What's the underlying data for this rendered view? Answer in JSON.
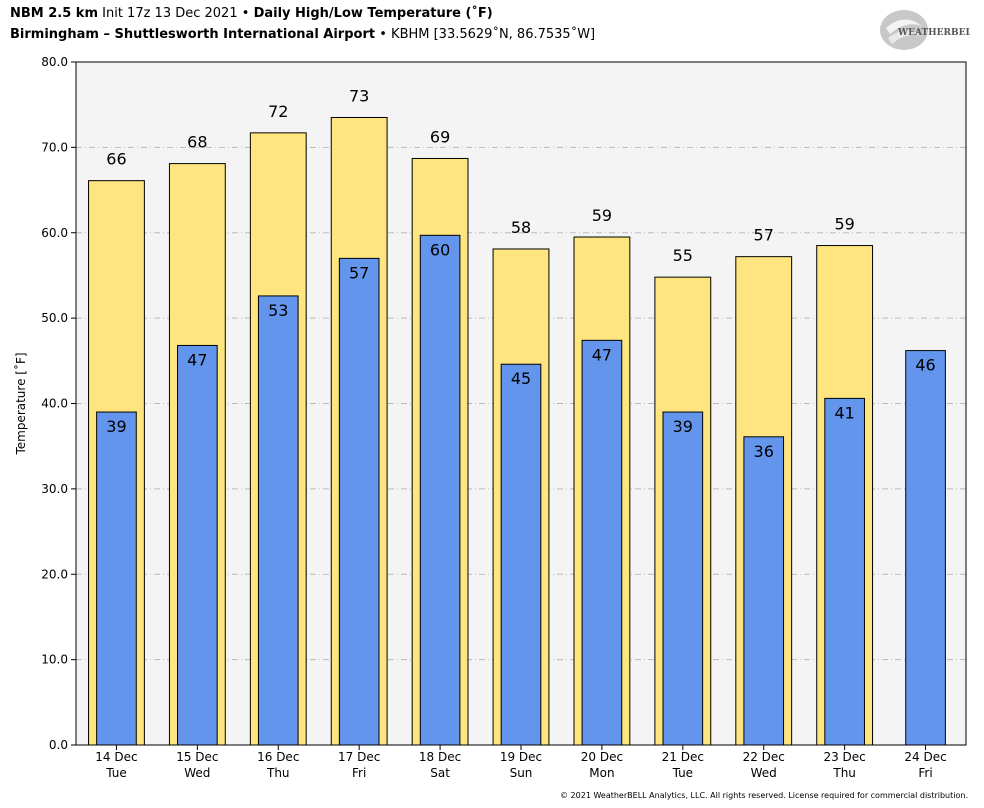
{
  "header": {
    "model": "NBM 2.5 km",
    "init": "Init 17z 13 Dec 2021",
    "sep1": "•",
    "product": "Daily High/Low Temperature (˚F)",
    "location": "Birmingham – Shuttlesworth International Airport",
    "sep2": "•",
    "station": "KBHM [33.5629˚N, 86.7535˚W]"
  },
  "logo": {
    "name": "weatherbell-logo",
    "text": "WEATHERBELL"
  },
  "footer": {
    "copyright": "© 2021 WeatherBELL Analytics, LLC. All rights reserved. License required for commercial distribution."
  },
  "colors": {
    "high": "#ffe57f",
    "low": "#6495ed",
    "plot_bg": "#f4f4f4",
    "grid": "#bbbbbb"
  },
  "chart_data": {
    "type": "bar",
    "title": "Daily High/Low Temperature (˚F)",
    "ylabel": "Temperature [˚F]",
    "ylim": [
      0,
      80
    ],
    "yticks": [
      "0.0",
      "10.0",
      "20.0",
      "30.0",
      "40.0",
      "50.0",
      "60.0",
      "70.0",
      "80.0"
    ],
    "grid": true,
    "categories": [
      "14 Dec",
      "15 Dec",
      "16 Dec",
      "17 Dec",
      "18 Dec",
      "19 Dec",
      "20 Dec",
      "21 Dec",
      "22 Dec",
      "23 Dec",
      "24 Dec"
    ],
    "weekdays": [
      "Tue",
      "Wed",
      "Thu",
      "Fri",
      "Sat",
      "Sun",
      "Mon",
      "Tue",
      "Wed",
      "Thu",
      "Fri"
    ],
    "series": [
      {
        "values": [
          66.1,
          68.1,
          71.7,
          73.5,
          68.7,
          58.1,
          59.5,
          54.8,
          57.2,
          58.5,
          null
        ],
        "labels": [
          "66",
          "68",
          "72",
          "73",
          "69",
          "58",
          "59",
          "55",
          "57",
          "59",
          ""
        ]
      },
      {
        "values": [
          39.0,
          46.8,
          52.6,
          57.0,
          59.7,
          44.6,
          47.4,
          39.0,
          36.1,
          40.6,
          46.2
        ],
        "labels": [
          "39",
          "47",
          "53",
          "57",
          "60",
          "45",
          "47",
          "39",
          "36",
          "41",
          "46"
        ]
      }
    ]
  }
}
